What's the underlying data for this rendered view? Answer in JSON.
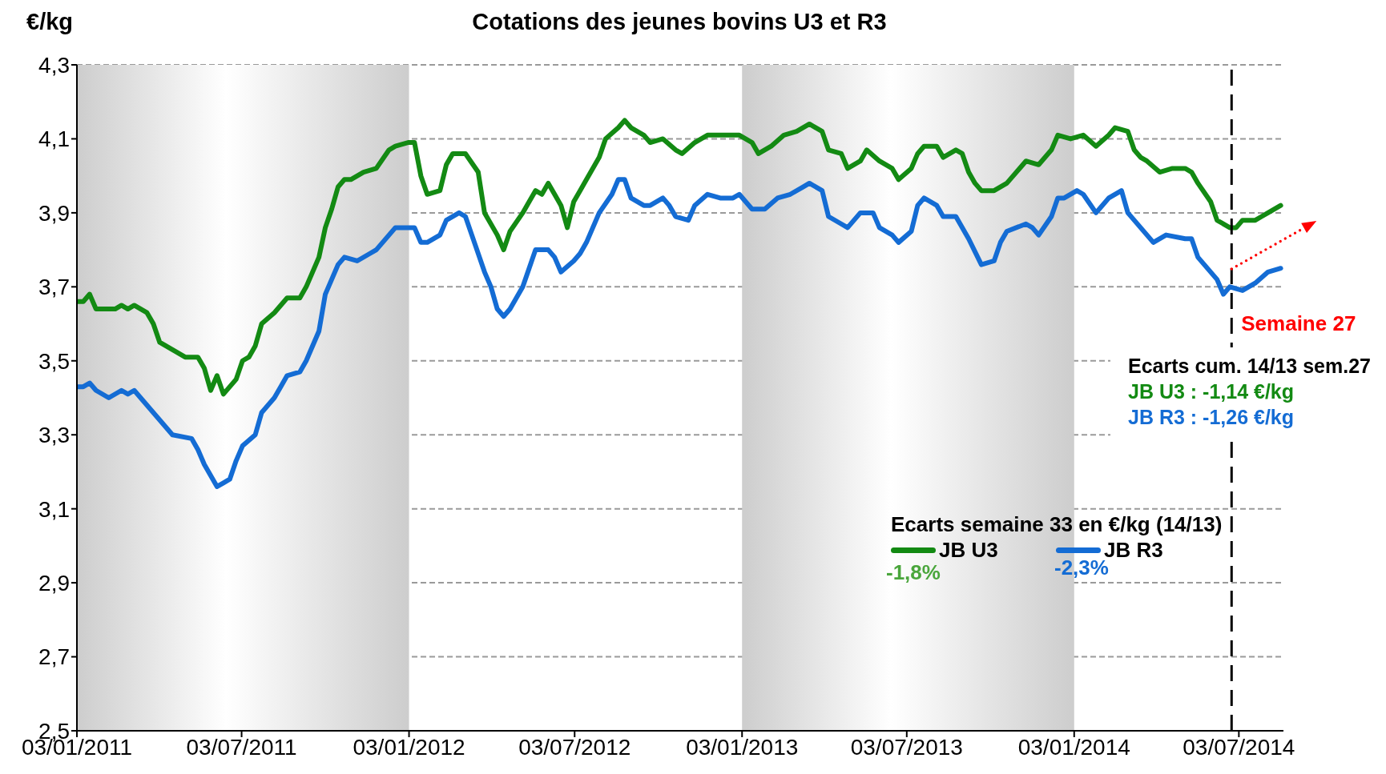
{
  "chart_data": {
    "type": "line",
    "title": "Cotations des jeunes bovins U3 et R3",
    "ylabel": "€/kg",
    "legend_title": "Ecarts semaine 33 en €/kg (14/13)",
    "legend": "right",
    "grid": "y",
    "marker": "none",
    "annotations": [
      "Ecarts cum. 14/13 sem.27",
      "JB U3 : -1,14 €/kg",
      "JB R3 : -1,26 €/kg",
      "-1,8%",
      "-2,3%"
    ],
    "xlim": [
      "2011-01-03",
      "2014-08-21"
    ],
    "xticks": [
      {
        "value": "2011-01-03",
        "label": "03/01/2011"
      },
      {
        "value": "2011-07-03",
        "label": "03/07/2011"
      },
      {
        "value": "2012-01-03",
        "label": "03/01/2012"
      },
      {
        "value": "2012-07-03",
        "label": "03/07/2012"
      },
      {
        "value": "2013-01-03",
        "label": "03/01/2013"
      },
      {
        "value": "2013-07-03",
        "label": "03/07/2013"
      },
      {
        "value": "2014-01-03",
        "label": "03/01/2014"
      },
      {
        "value": "2014-07-03",
        "label": "03/07/2014"
      }
    ],
    "ylim": [
      2.5,
      4.3
    ],
    "yticks": [
      {
        "value": 2.5,
        "label": "2,5"
      },
      {
        "value": 2.7,
        "label": "2,7"
      },
      {
        "value": 2.9,
        "label": "2,9"
      },
      {
        "value": 3.1,
        "label": "3,1"
      },
      {
        "value": 3.3,
        "label": "3,3"
      },
      {
        "value": 3.5,
        "label": "3,5"
      },
      {
        "value": 3.7,
        "label": "3,7"
      },
      {
        "value": 3.9,
        "label": "3,9"
      },
      {
        "value": 4.1,
        "label": "4,1"
      },
      {
        "value": 4.3,
        "label": "4,3"
      }
    ],
    "ref_lines": [
      {
        "axis": "x",
        "value": "2014-06-25",
        "label": "Semaine 27",
        "color": "#000000",
        "line_style": "dashed"
      }
    ],
    "bands": [
      {
        "axis": "x",
        "from": "2011-01-03",
        "to": "2012-01-03",
        "color": "#cdcdcd"
      },
      {
        "axis": "x",
        "from": "2013-01-03",
        "to": "2014-01-03",
        "color": "#cdcdcd"
      }
    ],
    "series": [
      {
        "name": "JB U3",
        "color": "#138a13",
        "x": [
          "2011-01-03",
          "2011-01-10",
          "2011-01-17",
          "2011-01-24",
          "2011-02-14",
          "2011-02-21",
          "2011-02-28",
          "2011-03-07",
          "2011-03-21",
          "2011-03-28",
          "2011-04-04",
          "2011-04-18",
          "2011-05-02",
          "2011-05-16",
          "2011-05-23",
          "2011-05-30",
          "2011-06-06",
          "2011-06-13",
          "2011-06-27",
          "2011-07-04",
          "2011-07-11",
          "2011-07-18",
          "2011-07-25",
          "2011-08-08",
          "2011-08-15",
          "2011-08-22",
          "2011-09-05",
          "2011-09-12",
          "2011-09-26",
          "2011-10-03",
          "2011-10-10",
          "2011-10-17",
          "2011-10-24",
          "2011-10-31",
          "2011-11-14",
          "2011-11-28",
          "2011-12-12",
          "2011-12-19",
          "2012-01-02",
          "2012-01-09",
          "2012-01-16",
          "2012-01-23",
          "2012-02-06",
          "2012-02-13",
          "2012-02-20",
          "2012-03-05",
          "2012-03-19",
          "2012-03-26",
          "2012-04-09",
          "2012-04-16",
          "2012-04-23",
          "2012-05-07",
          "2012-05-21",
          "2012-05-28",
          "2012-06-04",
          "2012-06-11",
          "2012-06-18",
          "2012-06-25",
          "2012-07-02",
          "2012-07-09",
          "2012-07-16",
          "2012-07-30",
          "2012-08-06",
          "2012-08-20",
          "2012-08-27",
          "2012-09-03",
          "2012-09-17",
          "2012-09-24",
          "2012-10-08",
          "2012-10-22",
          "2012-10-29",
          "2012-11-12",
          "2012-11-26",
          "2012-12-31",
          "2013-01-14",
          "2013-01-21",
          "2013-02-04",
          "2013-02-18",
          "2013-03-04",
          "2013-03-18",
          "2013-04-01",
          "2013-04-08",
          "2013-04-22",
          "2013-04-29",
          "2013-05-13",
          "2013-05-20",
          "2013-06-03",
          "2013-06-17",
          "2013-06-24",
          "2013-07-08",
          "2013-07-15",
          "2013-07-22",
          "2013-07-29",
          "2013-08-05",
          "2013-08-12",
          "2013-08-26",
          "2013-09-02",
          "2013-09-09",
          "2013-09-16",
          "2013-09-23",
          "2013-10-07",
          "2013-10-21",
          "2013-11-04",
          "2013-11-11",
          "2013-11-25",
          "2013-12-09",
          "2013-12-16",
          "2013-12-30",
          "2014-01-13",
          "2014-01-27",
          "2014-02-10",
          "2014-02-17",
          "2014-03-03",
          "2014-03-10",
          "2014-03-17",
          "2014-03-24",
          "2014-04-07",
          "2014-04-21",
          "2014-05-05",
          "2014-05-12",
          "2014-05-19",
          "2014-06-02",
          "2014-06-09",
          "2014-06-23",
          "2014-06-30",
          "2014-07-07",
          "2014-07-21",
          "2014-07-28",
          "2014-08-04",
          "2014-08-18"
        ],
        "values": [
          3.66,
          3.66,
          3.68,
          3.64,
          3.64,
          3.65,
          3.64,
          3.65,
          3.63,
          3.6,
          3.55,
          3.53,
          3.51,
          3.51,
          3.48,
          3.42,
          3.46,
          3.41,
          3.45,
          3.5,
          3.51,
          3.54,
          3.6,
          3.63,
          3.65,
          3.67,
          3.67,
          3.7,
          3.78,
          3.86,
          3.91,
          3.97,
          3.99,
          3.99,
          4.01,
          4.02,
          4.07,
          4.08,
          4.09,
          4.09,
          4.0,
          3.95,
          3.96,
          4.03,
          4.06,
          4.06,
          4.01,
          3.9,
          3.84,
          3.8,
          3.85,
          3.9,
          3.96,
          3.95,
          3.98,
          3.95,
          3.92,
          3.86,
          3.93,
          3.96,
          3.99,
          4.05,
          4.1,
          4.13,
          4.15,
          4.13,
          4.11,
          4.09,
          4.1,
          4.07,
          4.06,
          4.09,
          4.11,
          4.11,
          4.09,
          4.06,
          4.08,
          4.11,
          4.12,
          4.14,
          4.12,
          4.07,
          4.06,
          4.02,
          4.04,
          4.07,
          4.04,
          4.02,
          3.99,
          4.02,
          4.06,
          4.08,
          4.08,
          4.08,
          4.05,
          4.07,
          4.06,
          4.01,
          3.98,
          3.96,
          3.96,
          3.98,
          4.02,
          4.04,
          4.03,
          4.07,
          4.11,
          4.1,
          4.11,
          4.08,
          4.11,
          4.13,
          4.12,
          4.07,
          4.05,
          4.04,
          4.01,
          4.02,
          4.02,
          4.01,
          3.98,
          3.93,
          3.88,
          3.86,
          3.86,
          3.88,
          3.88,
          3.89,
          3.9,
          3.92
        ]
      },
      {
        "name": "JB R3",
        "color": "#146cd4",
        "x": [
          "2011-01-03",
          "2011-01-10",
          "2011-01-17",
          "2011-01-24",
          "2011-02-07",
          "2011-02-21",
          "2011-02-28",
          "2011-03-07",
          "2011-03-21",
          "2011-04-04",
          "2011-04-18",
          "2011-05-09",
          "2011-05-16",
          "2011-05-23",
          "2011-06-06",
          "2011-06-13",
          "2011-06-20",
          "2011-06-27",
          "2011-07-04",
          "2011-07-18",
          "2011-07-25",
          "2011-08-08",
          "2011-08-15",
          "2011-08-22",
          "2011-09-05",
          "2011-09-12",
          "2011-09-26",
          "2011-10-03",
          "2011-10-17",
          "2011-10-24",
          "2011-11-07",
          "2011-11-21",
          "2011-11-28",
          "2011-12-12",
          "2011-12-19",
          "2012-01-09",
          "2012-01-16",
          "2012-01-23",
          "2012-02-06",
          "2012-02-13",
          "2012-02-27",
          "2012-03-05",
          "2012-03-12",
          "2012-03-26",
          "2012-04-02",
          "2012-04-09",
          "2012-04-16",
          "2012-04-23",
          "2012-05-07",
          "2012-05-14",
          "2012-05-21",
          "2012-06-04",
          "2012-06-11",
          "2012-06-18",
          "2012-07-02",
          "2012-07-09",
          "2012-07-16",
          "2012-07-30",
          "2012-08-13",
          "2012-08-20",
          "2012-08-27",
          "2012-09-03",
          "2012-09-17",
          "2012-09-24",
          "2012-10-08",
          "2012-10-15",
          "2012-10-22",
          "2012-11-05",
          "2012-11-12",
          "2012-11-26",
          "2012-12-10",
          "2012-12-24",
          "2012-12-31",
          "2013-01-14",
          "2013-01-28",
          "2013-02-11",
          "2013-02-25",
          "2013-03-11",
          "2013-03-18",
          "2013-04-01",
          "2013-04-08",
          "2013-04-22",
          "2013-04-29",
          "2013-05-13",
          "2013-05-27",
          "2013-06-03",
          "2013-06-17",
          "2013-06-24",
          "2013-07-08",
          "2013-07-15",
          "2013-07-22",
          "2013-08-05",
          "2013-08-12",
          "2013-08-26",
          "2013-09-09",
          "2013-09-23",
          "2013-10-07",
          "2013-10-14",
          "2013-10-21",
          "2013-11-11",
          "2013-11-18",
          "2013-11-25",
          "2013-12-09",
          "2013-12-16",
          "2013-12-23",
          "2014-01-06",
          "2014-01-13",
          "2014-01-27",
          "2014-02-10",
          "2014-02-24",
          "2014-03-03",
          "2014-03-17",
          "2014-03-31",
          "2014-04-14",
          "2014-05-05",
          "2014-05-12",
          "2014-05-19",
          "2014-05-26",
          "2014-06-09",
          "2014-06-16",
          "2014-06-23",
          "2014-07-07",
          "2014-07-21",
          "2014-08-04",
          "2014-08-18"
        ],
        "values": [
          3.43,
          3.43,
          3.44,
          3.42,
          3.4,
          3.42,
          3.41,
          3.42,
          3.38,
          3.34,
          3.3,
          3.29,
          3.26,
          3.22,
          3.16,
          3.17,
          3.18,
          3.23,
          3.27,
          3.3,
          3.36,
          3.4,
          3.43,
          3.46,
          3.47,
          3.5,
          3.58,
          3.68,
          3.76,
          3.78,
          3.77,
          3.79,
          3.8,
          3.84,
          3.86,
          3.86,
          3.82,
          3.82,
          3.84,
          3.88,
          3.9,
          3.89,
          3.84,
          3.74,
          3.7,
          3.64,
          3.62,
          3.64,
          3.7,
          3.75,
          3.8,
          3.8,
          3.78,
          3.74,
          3.77,
          3.79,
          3.82,
          3.9,
          3.95,
          3.99,
          3.99,
          3.94,
          3.92,
          3.92,
          3.94,
          3.92,
          3.89,
          3.88,
          3.92,
          3.95,
          3.94,
          3.94,
          3.95,
          3.91,
          3.91,
          3.94,
          3.95,
          3.97,
          3.98,
          3.96,
          3.89,
          3.87,
          3.86,
          3.9,
          3.9,
          3.86,
          3.84,
          3.82,
          3.85,
          3.92,
          3.94,
          3.92,
          3.89,
          3.89,
          3.83,
          3.76,
          3.77,
          3.82,
          3.85,
          3.87,
          3.86,
          3.84,
          3.89,
          3.94,
          3.94,
          3.96,
          3.95,
          3.9,
          3.94,
          3.96,
          3.9,
          3.86,
          3.82,
          3.84,
          3.83,
          3.83,
          3.78,
          3.76,
          3.72,
          3.68,
          3.7,
          3.69,
          3.71,
          3.74,
          3.75
        ]
      }
    ]
  }
}
